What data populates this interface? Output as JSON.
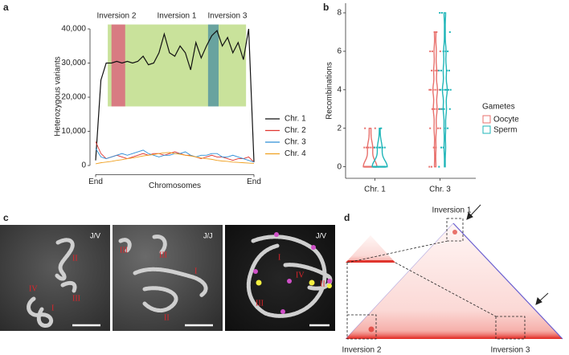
{
  "chart_data": [
    {
      "panel": "a",
      "type": "line",
      "xlabel": "Chromosomes",
      "ylabel": "Heterozygous variants",
      "categories": [
        "End",
        null,
        null,
        null,
        null,
        null,
        null,
        null,
        null,
        null,
        null,
        null,
        null,
        null,
        null,
        null,
        null,
        null,
        null,
        null,
        null,
        null,
        null,
        null,
        null,
        null,
        null,
        null,
        null,
        null,
        "End"
      ],
      "series": [
        {
          "name": "Chr. 1",
          "color": "#111111",
          "values": [
            1500,
            25000,
            30000,
            30000,
            30500,
            30000,
            30500,
            30000,
            30500,
            32000,
            29500,
            30000,
            33000,
            38500,
            33000,
            32000,
            35000,
            33000,
            28000,
            36000,
            31500,
            35000,
            38000,
            39500,
            35000,
            37500,
            33000,
            36000,
            31000,
            40000,
            1000
          ]
        },
        {
          "name": "Chr. 2",
          "color": "#e0342f",
          "values": [
            7000,
            3500,
            2000,
            2500,
            3000,
            2500,
            2000,
            2500,
            3000,
            3500,
            3000,
            3500,
            3500,
            3000,
            3500,
            4000,
            3500,
            3000,
            3000,
            2500,
            2000,
            2500,
            3000,
            2500,
            2500,
            2000,
            1500,
            2000,
            2000,
            2500,
            1000
          ]
        },
        {
          "name": "Chr. 3",
          "color": "#2f8fd8",
          "values": [
            5000,
            2500,
            2000,
            2500,
            3000,
            3500,
            3000,
            3500,
            4000,
            4500,
            3500,
            3000,
            2500,
            3000,
            3000,
            3500,
            3500,
            4000,
            3000,
            2500,
            3000,
            3000,
            3500,
            3500,
            2500,
            2500,
            3000,
            2500,
            2000,
            1500,
            1000
          ]
        },
        {
          "name": "Chr. 4",
          "color": "#f0a020",
          "values": [
            500,
            800,
            1000,
            1200,
            1500,
            1700,
            2000,
            2200,
            2500,
            2800,
            3000,
            3200,
            3500,
            3700,
            3800,
            3500,
            3300,
            3000,
            2800,
            2500,
            2200,
            2000,
            1800,
            1500,
            1300,
            1200,
            1000,
            900,
            800,
            700,
            600
          ]
        }
      ],
      "ylim": [
        -1500,
        42000
      ],
      "yticks": [
        0,
        {
          "value": 10000,
          "label": "10,000"
        },
        {
          "value": 20000,
          "label": "20,000"
        },
        {
          "value": 30000,
          "label": "30,000"
        },
        {
          "value": 40000,
          "label": "40,000"
        }
      ],
      "legend": "right",
      "regions": [
        {
          "label": "Inversion 1",
          "color": "#c9e29b",
          "start": 2.3,
          "end": 28.5
        },
        {
          "label": "Inversion 2",
          "color": "#d9707f",
          "start": 3.0,
          "end": 5.6
        },
        {
          "label": "Inversion 3",
          "color": "#5e9ca0",
          "start": 21.3,
          "end": 23.3
        }
      ]
    },
    {
      "panel": "b",
      "type": "violin",
      "ylabel": "Recombinations",
      "categories": [
        "Chr. 1",
        "Chr. 3"
      ],
      "legend_title": "Gametes",
      "series": [
        {
          "name": "Oocyte",
          "color": "#e8706c",
          "values": [
            [
              0,
              0,
              0,
              0,
              0,
              0,
              0,
              0,
              0,
              0,
              0,
              0,
              0,
              0,
              0,
              0,
              1,
              1,
              1,
              1,
              1,
              1,
              2,
              2
            ],
            [
              0,
              0,
              1,
              1,
              2,
              2,
              2,
              3,
              3,
              3,
              3,
              3,
              4,
              4,
              4,
              4,
              4,
              4,
              5,
              5,
              5,
              5,
              6,
              6,
              6,
              7,
              7
            ]
          ]
        },
        {
          "name": "Sperm",
          "color": "#1fb5b8",
          "values": [
            [
              0,
              0,
              0,
              0,
              0,
              0,
              0,
              0,
              0,
              0,
              0,
              0,
              0,
              0,
              0,
              0,
              0,
              0,
              0,
              0,
              1,
              1,
              1,
              1,
              1,
              1,
              2
            ],
            [
              0,
              1,
              1,
              2,
              2,
              3,
              3,
              3,
              3,
              4,
              4,
              4,
              4,
              4,
              4,
              5,
              5,
              5,
              5,
              6,
              6,
              6,
              7,
              8,
              8
            ]
          ]
        }
      ],
      "ylim": [
        -0.6,
        8.5
      ],
      "yticks": [
        0,
        2,
        4,
        6,
        8
      ]
    }
  ],
  "panel_c": {
    "panel": "c",
    "images": [
      {
        "label": "J/V",
        "annotations": [
          "II",
          "IV",
          "III",
          "I"
        ]
      },
      {
        "label": "J/J",
        "annotations": [
          "III",
          "III",
          "I",
          "II"
        ]
      },
      {
        "label": "J/V",
        "annotations": [
          "I",
          "IV",
          "II",
          "III"
        ]
      }
    ]
  },
  "panel_d": {
    "panel": "d",
    "labels": [
      "Inversion 1",
      "Inversion 2",
      "Inversion 3"
    ]
  }
}
